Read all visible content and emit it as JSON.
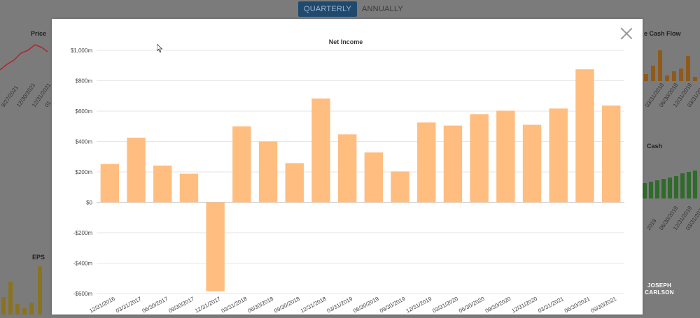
{
  "tabs": [
    {
      "label": "QUARTERLY",
      "active": true
    },
    {
      "label": "ANNUALLY",
      "active": false
    }
  ],
  "background": {
    "panels": {
      "price": "Price",
      "cash_flow": "e Cash Flow",
      "cash": "Cash",
      "eps": "EPS"
    },
    "left_dates": [
      "9/27/2021",
      "12/30/2021",
      "12/31/2021",
      "01"
    ],
    "right_dates_top": [
      "03/31/2018",
      "06/30/2018",
      "12/31/2019",
      "03/31/2021",
      "06/30/2021"
    ],
    "right_dates_bottom": [
      "2018",
      "06/30/2019",
      "12/31/2019",
      "03/31/2020",
      "06/30/2021"
    ]
  },
  "watermark": {
    "line1": "JOSEPH",
    "line2": "CARLSON"
  },
  "colors": {
    "bar": "#ffbd80",
    "grid": "#e6e6e6",
    "text": "#444444"
  },
  "chart_data": {
    "type": "bar",
    "title": "Net Income",
    "xlabel": "",
    "ylabel": "",
    "ylim": [
      -600,
      1000
    ],
    "yticks": [
      1000,
      800,
      600,
      400,
      200,
      0,
      -200,
      -400,
      -600
    ],
    "ytick_labels": [
      "$1,000m",
      "$800m",
      "$600m",
      "$400m",
      "$200m",
      "$0",
      "-$200m",
      "-$400m",
      "-$600m"
    ],
    "categories": [
      "12/31/2016",
      "03/31/2017",
      "06/30/2017",
      "09/30/2017",
      "12/31/2017",
      "03/31/2018",
      "06/30/2018",
      "09/30/2018",
      "12/31/2018",
      "03/31/2019",
      "06/30/2019",
      "09/30/2019",
      "12/31/2019",
      "03/31/2020",
      "06/30/2020",
      "09/30/2020",
      "12/31/2020",
      "03/31/2021",
      "06/30/2021",
      "09/30/2021"
    ],
    "values": [
      252,
      425,
      242,
      188,
      -585,
      500,
      400,
      258,
      683,
      447,
      328,
      203,
      525,
      505,
      580,
      603,
      510,
      617,
      875,
      637
    ],
    "grid": true,
    "legend": "none"
  }
}
